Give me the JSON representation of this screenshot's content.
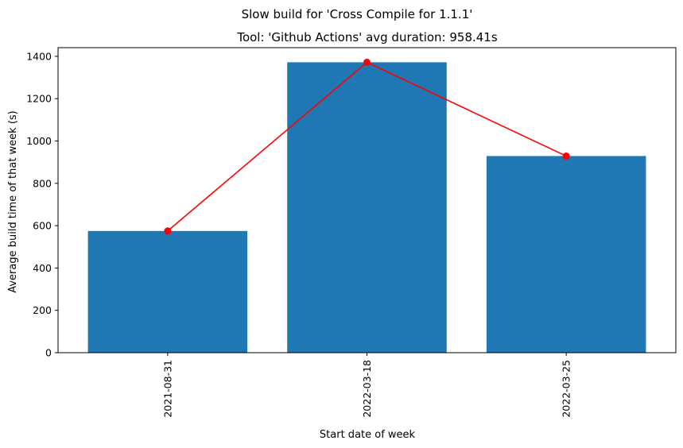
{
  "chart_data": {
    "type": "bar",
    "suptitle": "Slow build for 'Cross Compile for 1.1.1'",
    "title": "Tool: 'Github Actions' avg duration: 958.41s",
    "xlabel": "Start date of week",
    "ylabel": "Average build time of that week (s)",
    "categories": [
      "2021-08-31",
      "2022-03-18",
      "2022-03-25"
    ],
    "series": [
      {
        "type": "bar",
        "values": [
          575,
          1372,
          929
        ],
        "color": "#1f77b4"
      },
      {
        "type": "line",
        "values": [
          575,
          1372,
          929
        ],
        "color": "#ff0000",
        "marker": "circle"
      }
    ],
    "ylim": [
      0,
      1441
    ],
    "yticks": [
      0,
      200,
      400,
      600,
      800,
      1000,
      1200,
      1400
    ],
    "grid": false,
    "xtick_rotation": 90
  }
}
